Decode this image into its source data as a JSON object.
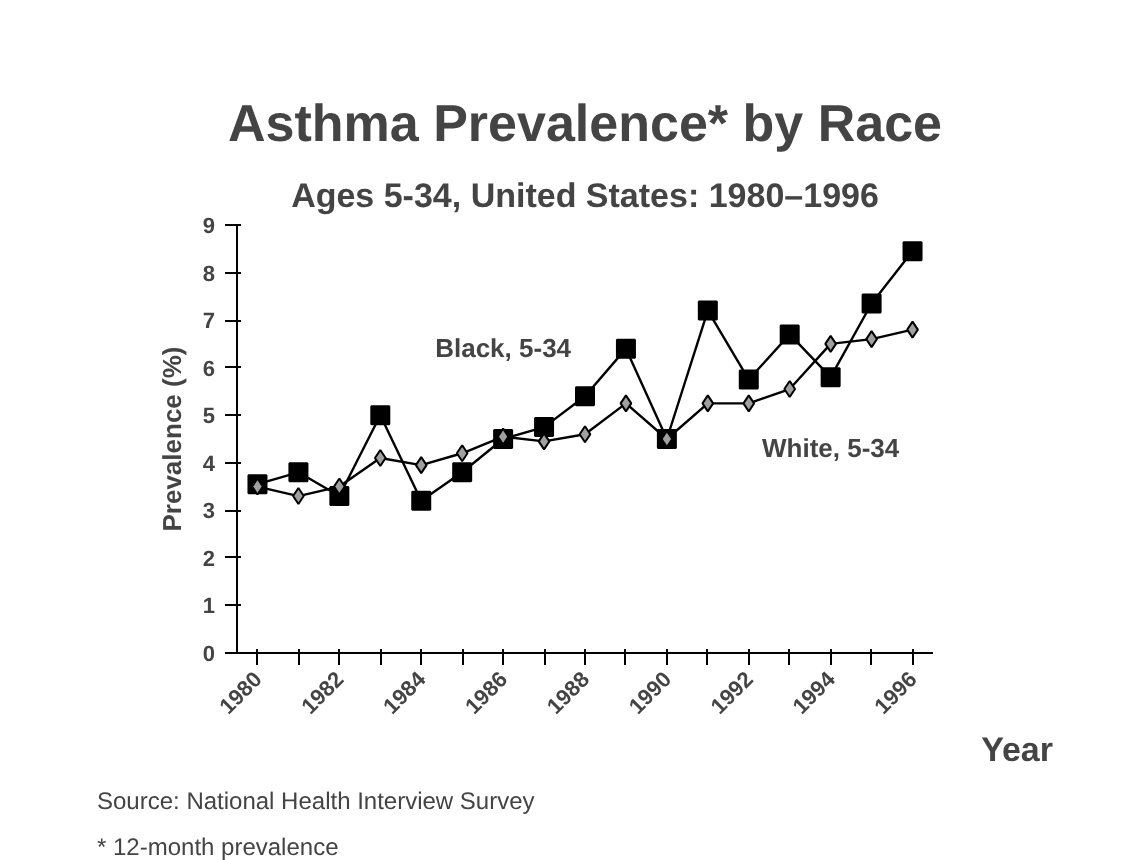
{
  "chart_data": {
    "type": "line",
    "title": "Asthma Prevalence* by Race",
    "subtitle": "Ages 5-34, United States: 1980–1996",
    "xlabel": "Year",
    "ylabel": "Prevalence (%)",
    "categories": [
      "1980",
      null,
      "1982",
      null,
      "1984",
      null,
      "1986",
      null,
      "1988",
      null,
      "1990",
      null,
      "1992",
      null,
      "1994",
      null,
      "1996"
    ],
    "series": [
      {
        "name": "Black, 5-34",
        "color": "#000000",
        "marker": "square",
        "values": [
          3.55,
          3.8,
          3.3,
          5.0,
          3.2,
          3.8,
          4.5,
          4.75,
          5.4,
          6.4,
          4.5,
          7.2,
          5.75,
          6.7,
          5.8,
          7.35,
          8.45
        ]
      },
      {
        "name": "White, 5-34",
        "color": "#a0a0a0",
        "marker": "diamond",
        "values": [
          3.5,
          3.3,
          3.5,
          4.1,
          3.95,
          4.2,
          4.55,
          4.45,
          4.6,
          5.25,
          4.5,
          5.25,
          5.25,
          5.55,
          6.5,
          6.6,
          6.8
        ]
      }
    ],
    "ylim": [
      0,
      9
    ],
    "yticks": [
      0,
      1,
      2,
      3,
      4,
      5,
      6,
      7,
      8,
      9
    ],
    "grid": false,
    "annotations": [
      "Source:  National Health Interview Survey",
      "* 12-month prevalence"
    ]
  }
}
